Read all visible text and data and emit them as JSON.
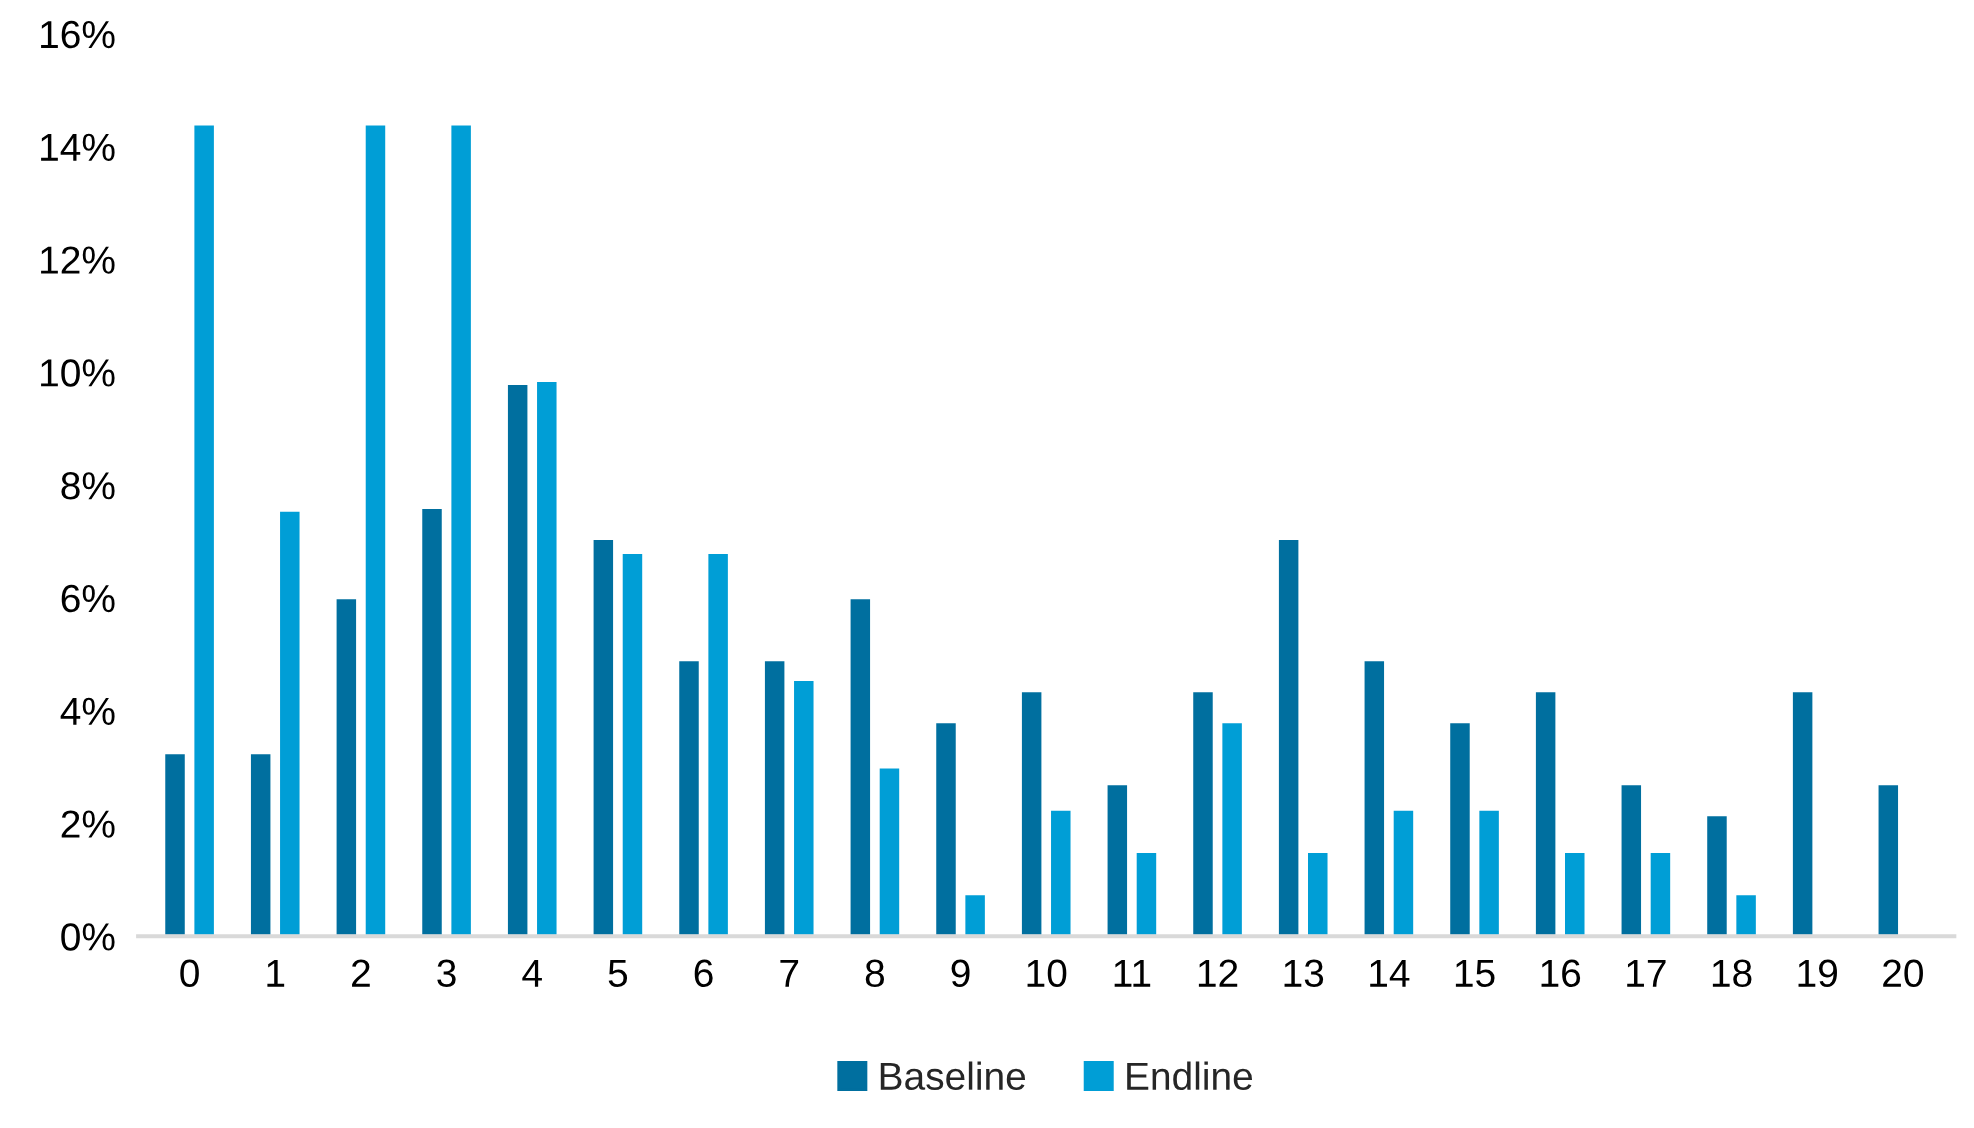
{
  "chart_data": {
    "type": "bar",
    "categories": [
      "0",
      "1",
      "2",
      "3",
      "4",
      "5",
      "6",
      "7",
      "8",
      "9",
      "10",
      "11",
      "12",
      "13",
      "14",
      "15",
      "16",
      "17",
      "18",
      "19",
      "20"
    ],
    "series": [
      {
        "name": "Baseline",
        "color": "#006f9f",
        "values": [
          3.25,
          3.25,
          6.0,
          7.6,
          9.8,
          7.05,
          4.9,
          4.9,
          6.0,
          3.8,
          4.35,
          2.7,
          4.35,
          7.05,
          4.9,
          3.8,
          4.35,
          2.7,
          2.15,
          4.35,
          2.7
        ]
      },
      {
        "name": "Endline",
        "color": "#009ed6",
        "values": [
          14.4,
          7.55,
          14.4,
          14.4,
          9.85,
          6.8,
          6.8,
          4.55,
          3.0,
          0.75,
          2.25,
          1.5,
          3.8,
          1.5,
          2.25,
          2.25,
          1.5,
          1.5,
          0.75,
          null,
          null
        ]
      }
    ],
    "ylim": [
      0,
      16
    ],
    "yticks": [
      {
        "value": 0,
        "label": "0%"
      },
      {
        "value": 2,
        "label": "2%"
      },
      {
        "value": 4,
        "label": "4%"
      },
      {
        "value": 6,
        "label": "6%"
      },
      {
        "value": 8,
        "label": "8%"
      },
      {
        "value": 10,
        "label": "10%"
      },
      {
        "value": 12,
        "label": "12%"
      },
      {
        "value": 14,
        "label": "14%"
      },
      {
        "value": 16,
        "label": "16%"
      }
    ],
    "grid": false,
    "legend": "bottom"
  }
}
